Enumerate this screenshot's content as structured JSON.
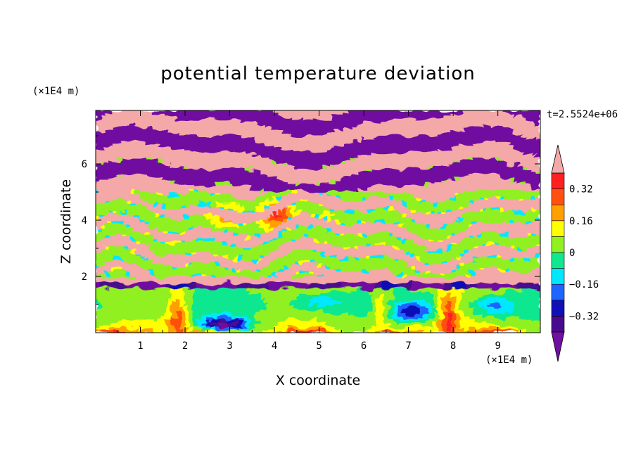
{
  "chart_data": {
    "type": "heatmap",
    "title": "potential temperature deviation",
    "xlabel": "X coordinate",
    "ylabel": "Z coordinate",
    "x_unit": "(×1E4 m)",
    "y_unit": "(×1E4 m)",
    "time_label": "t=2.5524e+06",
    "xlim": [
      0,
      9.95
    ],
    "ylim": [
      0,
      7.9
    ],
    "x_ticks": [
      1,
      2,
      3,
      4,
      5,
      6,
      7,
      8,
      9
    ],
    "x_tick_labels": [
      "1",
      "2",
      "3",
      "4",
      "5",
      "6",
      "7",
      "8",
      "9"
    ],
    "y_ticks": [
      2,
      4,
      6
    ],
    "y_tick_labels": [
      "2",
      "4",
      "6"
    ],
    "colorbar": {
      "levels": [
        -0.4,
        -0.32,
        -0.24,
        -0.16,
        -0.08,
        0,
        0.08,
        0.16,
        0.24,
        0.32,
        0.4
      ],
      "colors": [
        "#4a0a90",
        "#1010b8",
        "#1e64ff",
        "#00e8ff",
        "#10e890",
        "#90f020",
        "#ffff00",
        "#ffa000",
        "#ff5010",
        "#ff2020"
      ],
      "under_color": "#7010a0",
      "over_color": "#f4a8a8",
      "tick_values": [
        0.32,
        0.16,
        0,
        -0.16,
        -0.32
      ],
      "tick_labels": [
        "0.32",
        "0.16",
        "0",
        "−0.16",
        "−0.32"
      ]
    },
    "regions": [
      {
        "z_range": [
          5.0,
          7.9
        ],
        "description_value": "alternating bands",
        "dominant_values": [
          -0.45,
          0.45
        ]
      },
      {
        "z_range": [
          2.0,
          5.0
        ],
        "dominant_values": [
          -0.45,
          0.45,
          0.3,
          -0.1
        ]
      },
      {
        "z_range": [
          0.0,
          2.0
        ],
        "dominant_values": [
          0.05,
          0.0,
          -0.1,
          0.2,
          -0.2,
          -0.35
        ]
      }
    ],
    "features": [
      {
        "x": 2.9,
        "z": 0.35,
        "value": -0.38
      },
      {
        "x": 7.1,
        "z": 0.8,
        "value": -0.2
      },
      {
        "x": 8.9,
        "z": 0.95,
        "value": -0.12
      },
      {
        "x": 1.85,
        "z": 0.5,
        "value": 0.3
      },
      {
        "x": 7.9,
        "z": 0.5,
        "value": 0.3
      }
    ]
  }
}
